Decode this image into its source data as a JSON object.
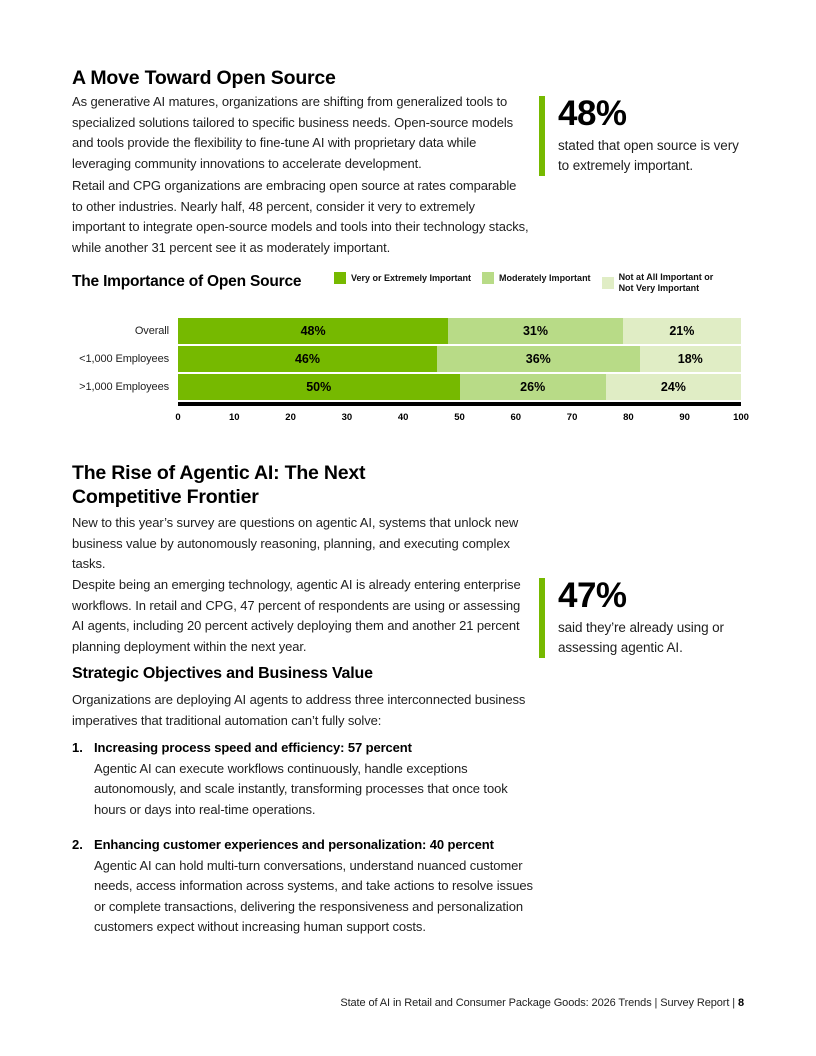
{
  "theme": {
    "accent": "#76b900"
  },
  "sections": {
    "open_source": {
      "heading": "A Move Toward Open Source",
      "paragraphs": [
        "As generative AI matures, organizations are shifting from generalized tools to specialized solutions tailored to specific business needs. Open-source models and tools provide the flexibility to fine-tune AI with proprietary data while leveraging community innovations to accelerate development.",
        "Retail and CPG organizations are embracing open source at rates comparable to other industries. Nearly half, 48 percent, consider it very to extremely important to integrate open-source models and tools into their technology stacks, while another 31 percent see it as moderately important."
      ],
      "stat": {
        "value": "48%",
        "caption": "stated that open source is very to extremely important."
      }
    },
    "agentic": {
      "heading_lines": [
        "The Rise of Agentic AI: The Next",
        "Competitive Frontier"
      ],
      "paragraphs": [
        "New to this year’s survey are questions on agentic AI, systems that unlock new business value by autonomously reasoning, planning, and executing complex tasks.",
        "Despite being an emerging technology, agentic AI is already entering enterprise workflows. In retail and CPG, 47 percent of respondents are using or assessing AI agents, including 20 percent actively deploying them and another 21 percent planning deployment within the next year."
      ],
      "stat": {
        "value": "47%",
        "caption": "said they’re already using or assessing agentic AI."
      }
    },
    "objectives": {
      "heading": "Strategic Objectives and Business Value",
      "intro": "Organizations are deploying AI agents to address three interconnected business imperatives that traditional automation can’t fully solve:",
      "items": [
        {
          "number": "1.",
          "title": "Increasing process speed and efficiency: 57 percent",
          "body": "Agentic AI can execute workflows continuously, handle exceptions autonomously, and scale instantly, transforming processes that once took hours or days into real-time operations."
        },
        {
          "number": "2.",
          "title": "Enhancing customer experiences and personalization: 40 percent",
          "body": "Agentic AI can hold multi-turn conversations, understand nuanced customer needs, access information across systems, and take actions to resolve issues or complete transactions, delivering the responsiveness and personalization customers expect without increasing human support costs."
        }
      ]
    }
  },
  "chart_data": {
    "type": "bar",
    "orientation": "horizontal",
    "stacked": true,
    "title": "The Importance of Open Source",
    "categories": [
      "Overall",
      "<1,000 Employees",
      ">1,000 Employees"
    ],
    "series": [
      {
        "name": "Very or Extremely Important",
        "color": "#76b900",
        "values": [
          48,
          46,
          50
        ]
      },
      {
        "name": "Moderately Important",
        "color": "#b8db87",
        "values": [
          31,
          36,
          26
        ]
      },
      {
        "name": "Not at All Important or Not Very Important",
        "color": "#e0edc5",
        "values": [
          21,
          18,
          24
        ]
      }
    ],
    "xlim": [
      0,
      100
    ],
    "x_ticks": [
      0,
      10,
      20,
      30,
      40,
      50,
      60,
      70,
      80,
      90,
      100
    ],
    "value_suffix": "%",
    "legend_position": "top-right",
    "grid": false
  },
  "footer": {
    "text": "State of AI in Retail and Consumer Package Goods: 2026 Trends  |  Survey Report  |",
    "page_number": "8"
  }
}
